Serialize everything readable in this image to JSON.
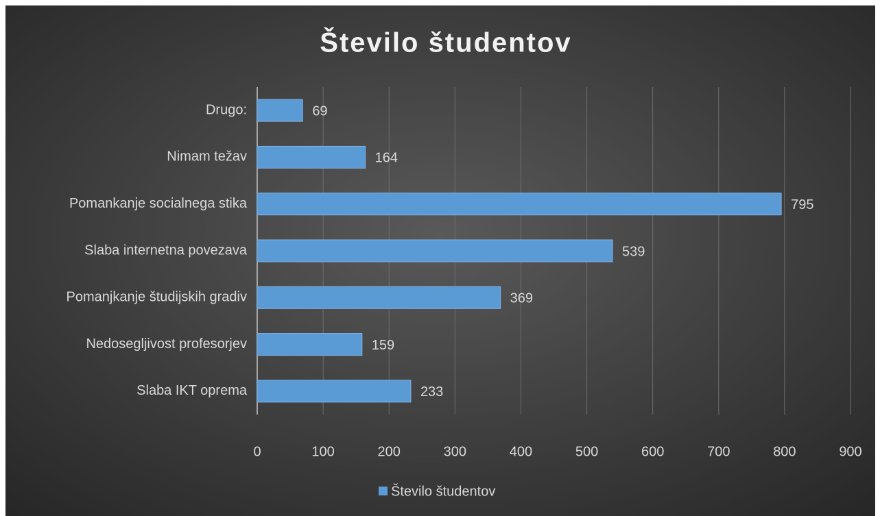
{
  "chart_data": {
    "type": "bar",
    "orientation": "horizontal",
    "title": "Število študentov",
    "categories": [
      "Drugo:",
      "Nimam težav",
      "Pomankanje socialnega stika",
      "Slaba internetna povezava",
      "Pomanjkanje študijskih gradiv",
      "Nedosegljivost profesorjev",
      "Slaba IKT oprema"
    ],
    "series": [
      {
        "name": "Število študentov",
        "color": "#5b9bd5",
        "values": [
          69,
          164,
          795,
          539,
          369,
          159,
          233
        ]
      }
    ],
    "xlim": [
      0,
      900
    ],
    "xticks": [
      0,
      100,
      200,
      300,
      400,
      500,
      600,
      700,
      800,
      900
    ],
    "grid": true,
    "legend": "bottom",
    "data_labels": true
  }
}
